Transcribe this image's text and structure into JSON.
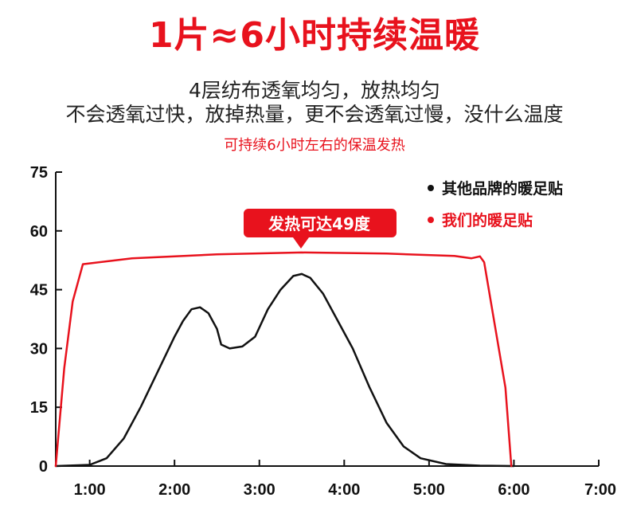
{
  "header": {
    "title": "1片≈6小时持续温暖",
    "subtitle_line1": "4层纺布透氧均匀，放热均匀",
    "subtitle_line2": "不会透氧过快，放掉热量，更不会透氧过慢，没什么温度",
    "highlight": "可持续6小时左右的保温发热"
  },
  "colors": {
    "accent": "#e8121d",
    "other_series": "#111111"
  },
  "chart_data": {
    "type": "line",
    "title": "",
    "xlabel": "",
    "ylabel": "",
    "x_ticks": [
      "1:00",
      "2:00",
      "3:00",
      "4:00",
      "5:00",
      "6:00",
      "7:00"
    ],
    "y_ticks": [
      "0",
      "15",
      "30",
      "45",
      "60",
      "75"
    ],
    "xlim": [
      0.6,
      7.0
    ],
    "ylim": [
      0,
      75
    ],
    "grid": false,
    "legend_position": "top-right",
    "series": [
      {
        "name": "其他品牌的暖足贴",
        "color": "#111111",
        "points": [
          [
            0.6,
            0
          ],
          [
            1.0,
            0.3
          ],
          [
            1.2,
            2
          ],
          [
            1.4,
            7
          ],
          [
            1.6,
            15
          ],
          [
            1.8,
            24
          ],
          [
            2.0,
            33
          ],
          [
            2.1,
            37
          ],
          [
            2.2,
            40
          ],
          [
            2.3,
            40.5
          ],
          [
            2.4,
            39
          ],
          [
            2.5,
            35
          ],
          [
            2.55,
            31
          ],
          [
            2.65,
            30
          ],
          [
            2.8,
            30.5
          ],
          [
            2.95,
            33
          ],
          [
            3.1,
            40
          ],
          [
            3.25,
            45
          ],
          [
            3.4,
            48.5
          ],
          [
            3.5,
            49
          ],
          [
            3.6,
            48
          ],
          [
            3.75,
            44
          ],
          [
            3.9,
            38
          ],
          [
            4.1,
            30
          ],
          [
            4.3,
            20
          ],
          [
            4.5,
            11
          ],
          [
            4.7,
            5
          ],
          [
            4.9,
            2
          ],
          [
            5.2,
            0.5
          ],
          [
            5.6,
            0.1
          ],
          [
            6.0,
            0
          ]
        ]
      },
      {
        "name": "我们的暖足贴",
        "color": "#e8121d",
        "points": [
          [
            0.6,
            0
          ],
          [
            0.7,
            25
          ],
          [
            0.8,
            42
          ],
          [
            0.92,
            51.5
          ],
          [
            1.5,
            53
          ],
          [
            2.5,
            54
          ],
          [
            3.5,
            54.5
          ],
          [
            4.5,
            54.2
          ],
          [
            5.3,
            53.6
          ],
          [
            5.5,
            53
          ],
          [
            5.6,
            53.5
          ],
          [
            5.65,
            52
          ],
          [
            5.9,
            20
          ],
          [
            5.97,
            0
          ]
        ]
      }
    ],
    "annotation": "发热可达49度"
  }
}
